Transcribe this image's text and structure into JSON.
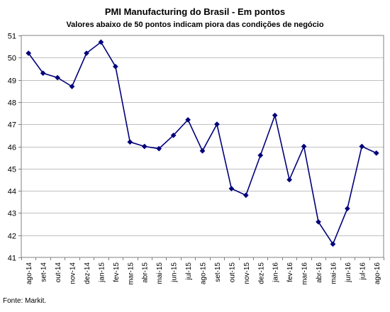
{
  "chart_data": {
    "type": "line",
    "title": "PMI Manufacturing do Brasil - Em pontos",
    "subtitle": "Valores abaixo de 50 pontos indicam piora das condições de negócio",
    "xlabel": "",
    "ylabel": "",
    "ylim": [
      41,
      51
    ],
    "yticks": [
      41,
      42,
      43,
      44,
      45,
      46,
      47,
      48,
      49,
      50,
      51
    ],
    "grid": true,
    "legend": "none",
    "categories": [
      "ago-14",
      "set-14",
      "out-14",
      "nov-14",
      "dez-14",
      "jan-15",
      "fev-15",
      "mar-15",
      "abr-15",
      "mai-15",
      "jun-15",
      "jul-15",
      "ago-15",
      "set-15",
      "out-15",
      "nov-15",
      "dez-15",
      "jan-16",
      "fev-16",
      "mar-16",
      "abr-16",
      "mai-16",
      "jun-16",
      "jul-16",
      "ago-16"
    ],
    "values": [
      50.2,
      49.3,
      49.1,
      48.7,
      50.2,
      50.7,
      49.6,
      46.2,
      46.0,
      45.9,
      46.5,
      47.2,
      45.8,
      47.0,
      44.1,
      43.8,
      45.6,
      47.4,
      44.5,
      46.0,
      42.6,
      41.6,
      43.2,
      46.0,
      45.7
    ],
    "colors": {
      "line": "#00007a",
      "marker": "#00007a",
      "grid": "#c0c0c0",
      "axis": "#808080"
    }
  },
  "source": "Fonte: Markit."
}
